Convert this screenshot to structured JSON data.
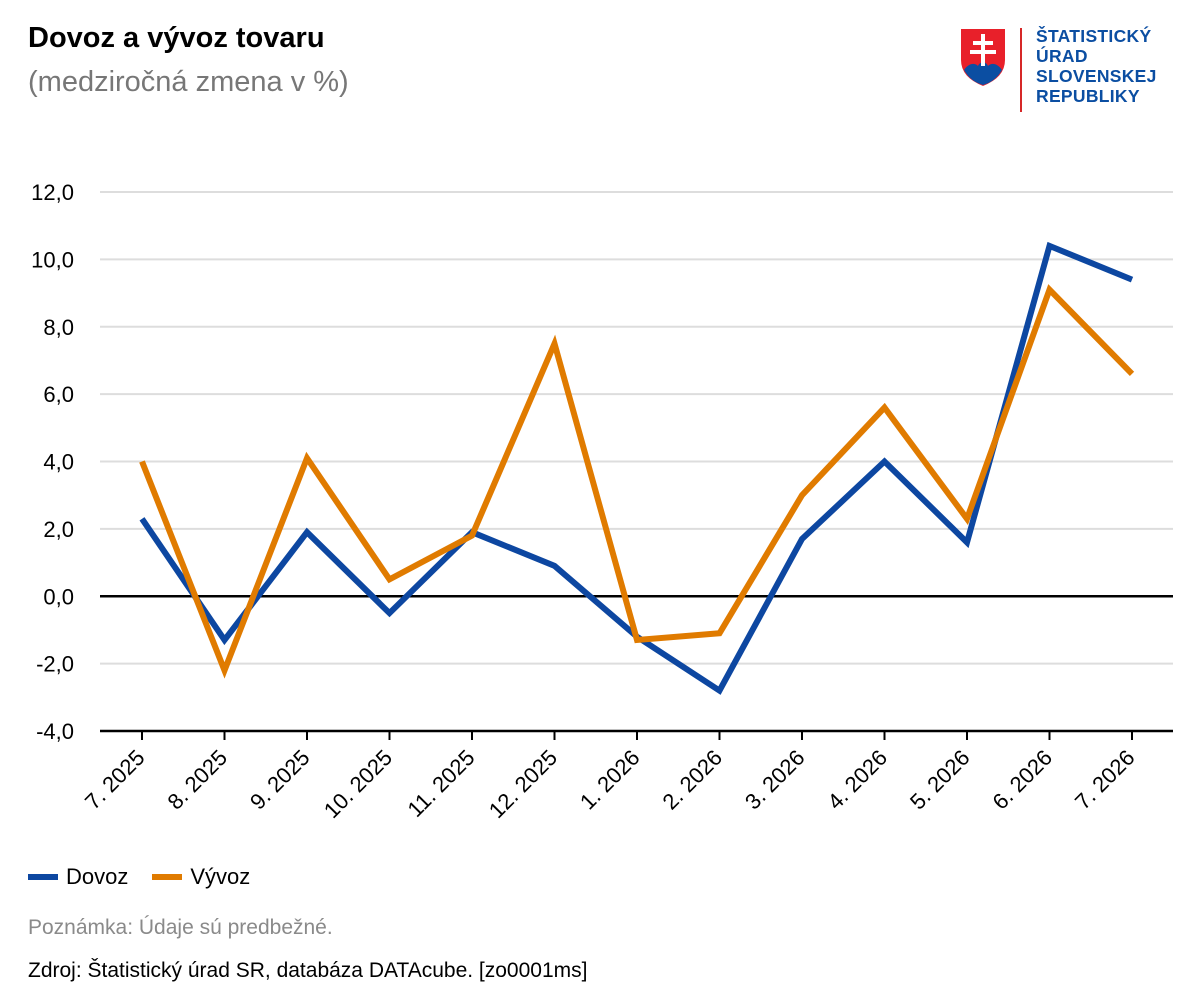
{
  "header": {
    "title": "Dovoz a vývoz tovaru",
    "subtitle": "(medziročná zmena v %)"
  },
  "logo": {
    "lines": [
      "ŠTATISTICKÝ",
      "ÚRAD",
      "SLOVENSKEJ",
      "REPUBLIKY"
    ],
    "text_color": "#0b4ea2",
    "divider_color": "#d62828"
  },
  "chart_data": {
    "type": "line",
    "categories": [
      "7. 2025",
      "8. 2025",
      "9. 2025",
      "10. 2025",
      "11. 2025",
      "12. 2025",
      "1. 2026",
      "2. 2026",
      "3. 2026",
      "4. 2026",
      "5. 2026",
      "6. 2026",
      "7. 2026"
    ],
    "series": [
      {
        "name": "Dovoz",
        "color": "#0d47a1",
        "values": [
          2.3,
          -1.3,
          1.9,
          -0.5,
          1.9,
          0.9,
          -1.2,
          -2.8,
          1.7,
          4.0,
          1.6,
          10.4,
          9.4
        ]
      },
      {
        "name": "Vývoz",
        "color": "#e07b00",
        "values": [
          4.0,
          -2.2,
          4.1,
          0.5,
          1.8,
          7.5,
          -1.3,
          -1.1,
          3.0,
          5.6,
          2.3,
          9.1,
          6.6
        ]
      }
    ],
    "yticks": [
      "12,0",
      "10,0",
      "8,0",
      "6,0",
      "4,0",
      "2,0",
      "0,0",
      "-2,0",
      "-4,0"
    ],
    "ylim": [
      -4,
      12
    ],
    "grid": true,
    "legend": "bottom-left"
  },
  "footer": {
    "note": "Poznámka: Údaje sú predbežné.",
    "source": "Zdroj: Štatistický úrad SR, databáza DATAcube. [zo0001ms]"
  }
}
